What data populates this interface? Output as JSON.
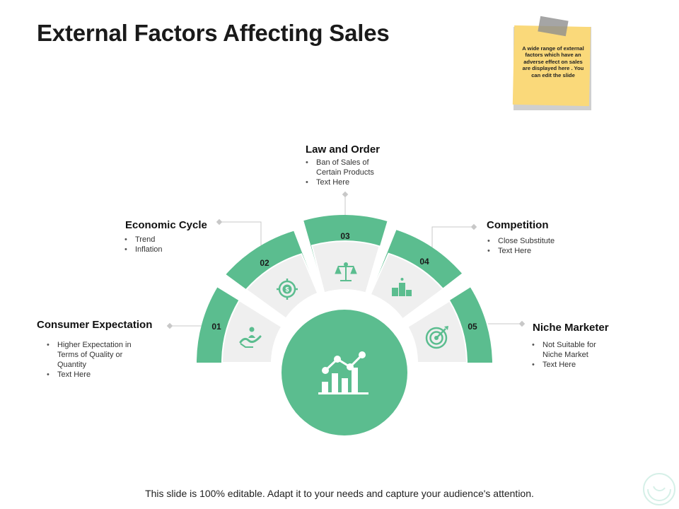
{
  "title": "External Factors Affecting Sales",
  "sticky_note": "A wide range of external factors which have an adverse effect on sales are displayed here . You can edit the slide",
  "segments": [
    {
      "number": "01",
      "heading": "Consumer Expectation",
      "bullets": [
        "Higher Expectation in Terms of Quality or Quantity",
        "Text Here"
      ],
      "icon": "hand-person-icon"
    },
    {
      "number": "02",
      "heading": "Economic Cycle",
      "bullets": [
        "Trend",
        "Inflation"
      ],
      "icon": "dollar-target-icon"
    },
    {
      "number": "03",
      "heading": "Law and Order",
      "bullets": [
        "Ban of Sales of Certain Products",
        "Text Here"
      ],
      "icon": "scales-icon"
    },
    {
      "number": "04",
      "heading": "Competition",
      "bullets": [
        "Close Substitute",
        "Text Here"
      ],
      "icon": "podium-icon"
    },
    {
      "number": "05",
      "heading": "Niche Marketer",
      "bullets": [
        "Not Suitable for Niche Market",
        "Text Here"
      ],
      "icon": "target-icon"
    }
  ],
  "center_icon": "growth-chart-icon",
  "footer": "This slide is 100% editable. Adapt it to your needs and capture your audience's attention.",
  "colors": {
    "accent": "#5bbd8f",
    "inner": "#efefef",
    "connector": "#c8c8c8"
  }
}
